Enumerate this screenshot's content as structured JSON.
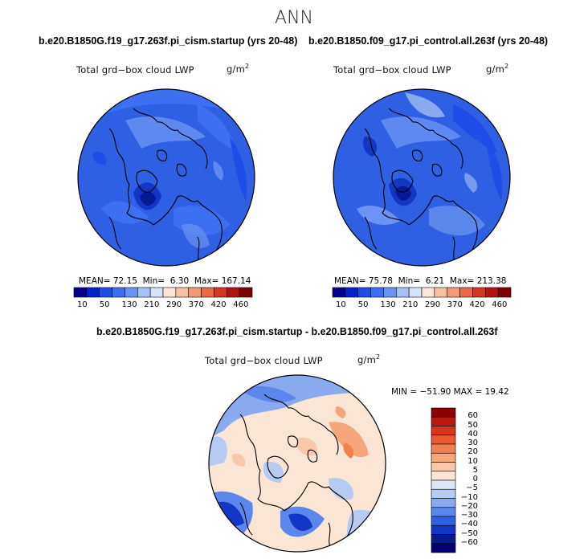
{
  "figure": {
    "season": "ANN",
    "panels": [
      {
        "title": "b.e20.B1850G.f19_g17.263f.pi_cism.startup (yrs 20-48)",
        "variable": "Total grd−box cloud LWP",
        "units": "g/m",
        "units_exp": "2",
        "stats": {
          "mean_label": "MEAN=",
          "mean": "72.15",
          "min_label": "Min=",
          "min": "6.30",
          "max_label": "Max=",
          "max": "167.14"
        }
      },
      {
        "title": "b.e20.B1850.f09_g17.pi_control.all.263f (yrs 20-48)",
        "variable": "Total grd−box cloud LWP",
        "units": "g/m",
        "units_exp": "2",
        "stats": {
          "mean_label": "MEAN=",
          "mean": "75.78",
          "min_label": "Min=",
          "min": "6.21",
          "max_label": "Max=",
          "max": "213.38"
        }
      }
    ],
    "abs_colorbar": {
      "labels": [
        "10",
        "50",
        "130",
        "210",
        "290",
        "370",
        "420",
        "460"
      ],
      "colors": [
        "#00008b",
        "#0022cc",
        "#1f4ee6",
        "#3d6ff2",
        "#6a93f5",
        "#a6c1f7",
        "#d6e3fa",
        "#fbe5d8",
        "#f7c1a6",
        "#f29a74",
        "#e86b45",
        "#d23a1f",
        "#b01510",
        "#7f0000"
      ]
    },
    "difference": {
      "title": "b.e20.B1850G.f19_g17.263f.pi_cism.startup - b.e20.B1850.f09_g17.pi_control.all.263f",
      "variable": "Total grd−box cloud LWP",
      "units": "g/m",
      "units_exp": "2",
      "minmax": "MIN = −51.90 MAX =  19.42",
      "colorbar": {
        "labels": [
          "60",
          "50",
          "40",
          "30",
          "20",
          "10",
          "5",
          "0",
          "−5",
          "−10",
          "−20",
          "−30",
          "−40",
          "−50",
          "−60"
        ],
        "colors": [
          "#8b0000",
          "#b81a0f",
          "#d8361a",
          "#ea5a2e",
          "#f2804e",
          "#f5a67a",
          "#f8c8a8",
          "#fbe6d6",
          "#dde7f7",
          "#b7cbf2",
          "#8aaaf0",
          "#5b86ec",
          "#2f5fe2",
          "#1336c4",
          "#031a93",
          "#000070"
        ]
      }
    }
  }
}
